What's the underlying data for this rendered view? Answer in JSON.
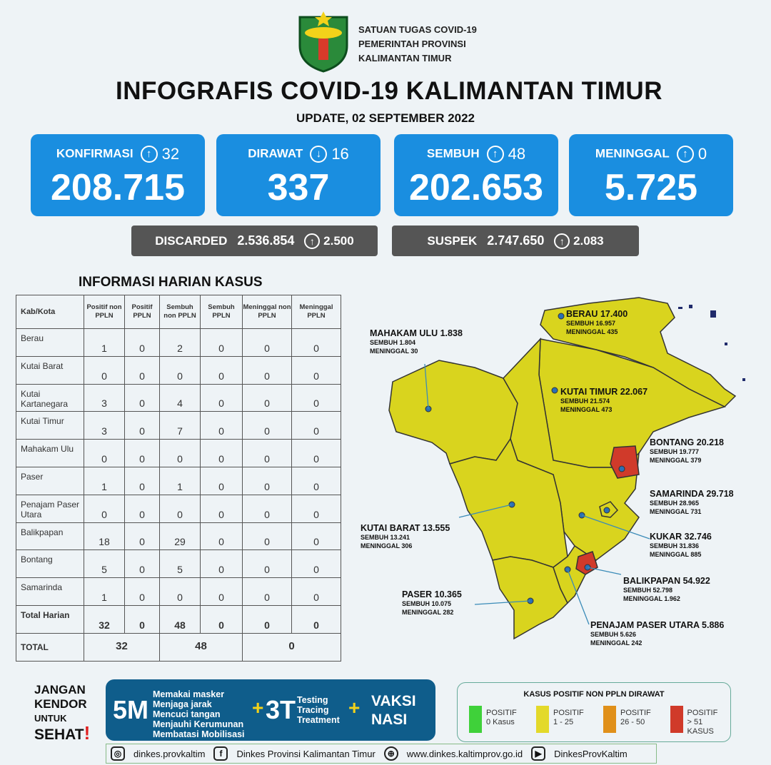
{
  "header": {
    "org_lines": [
      "SATUAN TUGAS COVID-19",
      "PEMERINTAH PROVINSI",
      "KALIMANTAN TIMUR"
    ],
    "title": "INFOGRAFIS COVID-19 KALIMANTAN TIMUR",
    "update": "UPDATE, 02 SEPTEMBER 2022",
    "logo_text": "KALIMANTAN TIMUR"
  },
  "stats": [
    {
      "label": "KONFIRMASI",
      "dir": "up",
      "delta": "32",
      "value": "208.715"
    },
    {
      "label": "DIRAWAT",
      "dir": "down",
      "delta": "16",
      "value": "337"
    },
    {
      "label": "SEMBUH",
      "dir": "up",
      "delta": "48",
      "value": "202.653"
    },
    {
      "label": "MENINGGAL",
      "dir": "up",
      "delta": "0",
      "value": "5.725"
    }
  ],
  "secondary": [
    {
      "label": "DISCARDED",
      "value": "2.536.854",
      "delta": "2.500"
    },
    {
      "label": "SUSPEK",
      "value": "2.747.650",
      "delta": "2.083"
    }
  ],
  "table": {
    "title": "INFORMASI HARIAN KASUS",
    "headers": [
      "Kab/Kota",
      "Positif non PPLN",
      "Positif PPLN",
      "Sembuh non PPLN",
      "Sembuh PPLN",
      "Meninggal non PPLN",
      "Meninggal PPLN"
    ],
    "rows": [
      [
        "Berau",
        "1",
        "0",
        "2",
        "0",
        "0",
        "0"
      ],
      [
        "Kutai Barat",
        "0",
        "0",
        "0",
        "0",
        "0",
        "0"
      ],
      [
        "Kutai Kartanegara",
        "3",
        "0",
        "4",
        "0",
        "0",
        "0"
      ],
      [
        "Kutai Timur",
        "3",
        "0",
        "7",
        "0",
        "0",
        "0"
      ],
      [
        "Mahakam Ulu",
        "0",
        "0",
        "0",
        "0",
        "0",
        "0"
      ],
      [
        "Paser",
        "1",
        "0",
        "1",
        "0",
        "0",
        "0"
      ],
      [
        "Penajam Paser Utara",
        "0",
        "0",
        "0",
        "0",
        "0",
        "0"
      ],
      [
        "Balikpapan",
        "18",
        "0",
        "29",
        "0",
        "0",
        "0"
      ],
      [
        "Bontang",
        "5",
        "0",
        "5",
        "0",
        "0",
        "0"
      ],
      [
        "Samarinda",
        "1",
        "0",
        "0",
        "0",
        "0",
        "0"
      ],
      [
        "Total Harian",
        "32",
        "0",
        "48",
        "0",
        "0",
        "0"
      ]
    ],
    "total": {
      "label": "TOTAL",
      "positif": "32",
      "sembuh": "48",
      "meninggal": "0"
    }
  },
  "map": [
    {
      "name": "BERAU",
      "total": "17.400",
      "sembuh": "SEMBUH 16.957",
      "meninggal": "MENINGGAL 435"
    },
    {
      "name": "MAHAKAM ULU",
      "total": "1.838",
      "sembuh": "SEMBUH 1.804",
      "meninggal": "MENINGGAL 30"
    },
    {
      "name": "KUTAI TIMUR",
      "total": "22.067",
      "sembuh": "SEMBUH 21.574",
      "meninggal": "MENINGGAL 473"
    },
    {
      "name": "BONTANG",
      "total": "20.218",
      "sembuh": "SEMBUH 19.777",
      "meninggal": "MENINGGAL 379"
    },
    {
      "name": "SAMARINDA",
      "total": "29.718",
      "sembuh": "SEMBUH 28.965",
      "meninggal": "MENINGGAL 731"
    },
    {
      "name": "KUTAI BARAT",
      "total": "13.555",
      "sembuh": "SEMBUH 13.241",
      "meninggal": "MENINGGAL 306"
    },
    {
      "name": "KUKAR",
      "total": "32.746",
      "sembuh": "SEMBUH 31.836",
      "meninggal": "MENINGGAL 885"
    },
    {
      "name": "BALIKPAPAN",
      "total": "54.922",
      "sembuh": "SEMBUH 52.798",
      "meninggal": "MENINGGAL 1.962"
    },
    {
      "name": "PASER",
      "total": "10.365",
      "sembuh": "SEMBUH 10.075",
      "meninggal": "MENINGGAL 282"
    },
    {
      "name": "PENAJAM PASER UTARA",
      "total": "5.886",
      "sembuh": "SEMBUH 5.626",
      "meninggal": "MENINGGAL 242"
    }
  ],
  "campaign": {
    "slogan": [
      "JANGAN",
      "KENDOR",
      "UNTUK",
      "SEHAT"
    ],
    "m5": "5M",
    "m5_items": [
      "Memakai masker",
      "Menjaga jarak",
      "Mencuci tangan",
      "Menjauhi Kerumunan",
      "Membatasi Mobilisasi"
    ],
    "t3": "3T",
    "t3_items": [
      "Testing",
      "Tracing",
      "Treatment"
    ],
    "vaksi": [
      "VAKSI",
      "NASI"
    ]
  },
  "legend": {
    "title": "KASUS POSITIF NON PPLN DIRAWAT",
    "items": [
      {
        "l1": "POSITIF",
        "l2": "0 Kasus",
        "color": "#3fd13a"
      },
      {
        "l1": "POSITIF",
        "l2": "1 - 25",
        "color": "#e3d92a"
      },
      {
        "l1": "POSITIF",
        "l2": "26 - 50",
        "color": "#e0901a"
      },
      {
        "l1": "POSITIF",
        "l2": "> 51 KASUS",
        "color": "#d03a2a"
      }
    ]
  },
  "footer": {
    "instagram": "dinkes.provkaltim",
    "facebook": "Dinkes Provinsi Kalimantan Timur",
    "web": "www.dinkes.kaltimprov.go.id",
    "youtube": "DinkesProvKaltim"
  }
}
